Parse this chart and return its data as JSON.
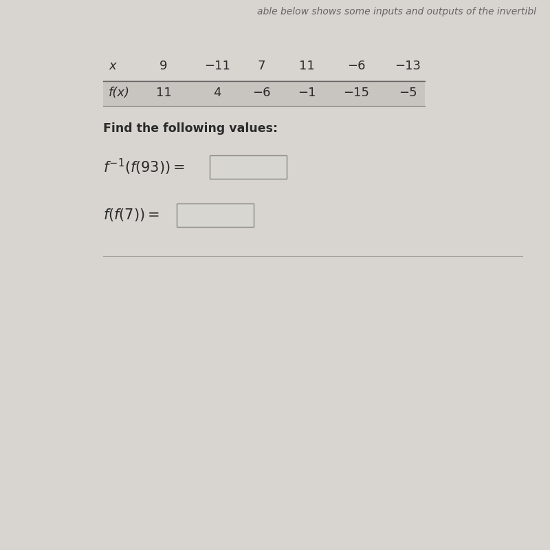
{
  "bg_color": "#d8d5d0",
  "paper_color": "#e8e6e2",
  "header_text": "able below shows some inputs and outputs of the invertibl",
  "table_x_label": "x",
  "table_x_values": [
    "9",
    "−11",
    "7",
    "11",
    "−6",
    "−13"
  ],
  "table_fx_label": "f(x)",
  "table_fx_values": [
    "11",
    "4",
    "−6",
    "−1",
    "−15",
    "−5"
  ],
  "row2_bg": "#c8c5c0",
  "find_text": "Find the following values:",
  "box_color": "#d8d6d0",
  "text_color": "#2a2a2a",
  "title_color": "#666666",
  "line_color": "#888888"
}
